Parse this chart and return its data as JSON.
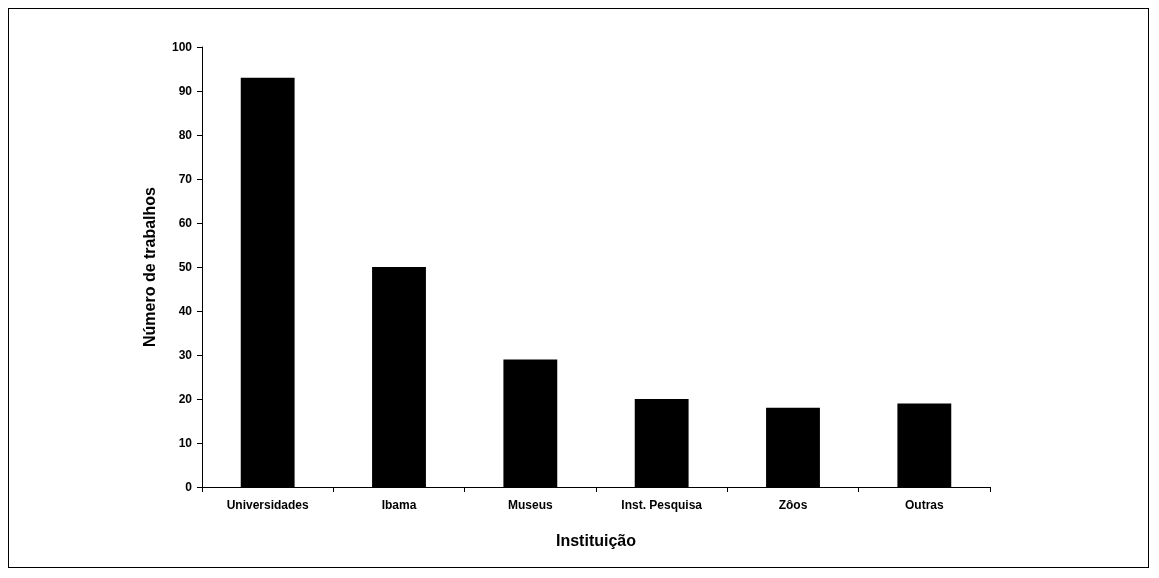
{
  "chart_data": {
    "type": "bar",
    "xlabel": "Instituição",
    "ylabel": "Número de trabalhos",
    "categories": [
      "Universidades",
      "Ibama",
      "Museus",
      "Inst. Pesquisa",
      "Zôos",
      "Outras"
    ],
    "values": [
      93,
      50,
      29,
      20,
      18,
      19
    ],
    "color": "#000000",
    "ylim": [
      0,
      100
    ],
    "yticks": [
      0,
      10,
      20,
      30,
      40,
      50,
      60,
      70,
      80,
      90,
      100
    ],
    "grid": false
  }
}
